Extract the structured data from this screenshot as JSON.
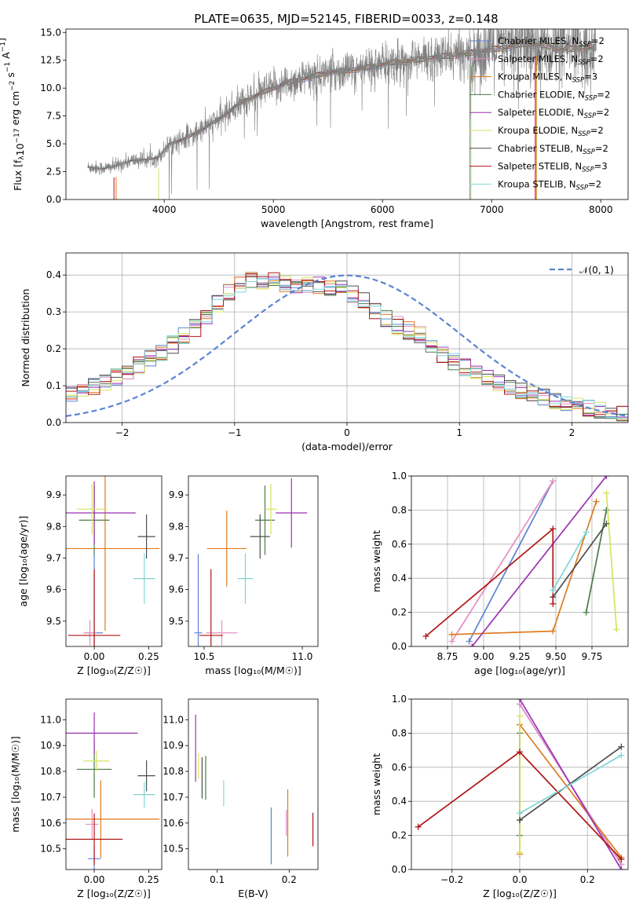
{
  "title": "PLATE=0635, MJD=52145, FIBERID=0033, z=0.148",
  "colors": {
    "Chabrier MILES": "#5b84d2",
    "Salpeter MILES": "#e58fc2",
    "Kroupa MILES": "#de7a1f",
    "Chabrier ELODIE": "#4a7a4a",
    "Salpeter ELODIE": "#9a32b2",
    "Kroupa ELODIE": "#d7e35e",
    "Chabrier STELIB": "#4d4d4d",
    "Salpeter STELIB": "#b01414",
    "Kroupa STELIB": "#7fd6d6",
    "data": "#808080"
  },
  "chart_data": [
    {
      "type": "line",
      "panel": "spectrum",
      "xlabel": "wavelength [Angstrom, rest frame]",
      "ylabel": "Flux [f",
      "xlim": [
        3100,
        8250
      ],
      "ylim": [
        0,
        15.3
      ],
      "xticks": [
        4000,
        5000,
        6000,
        7000,
        8000
      ],
      "yticks": [
        0.0,
        2.5,
        5.0,
        7.5,
        10.0,
        12.5,
        15.0
      ],
      "grid": false,
      "legend_position": "top-right",
      "legend": [
        {
          "model": "Chabrier MILES",
          "label": "Chabrier MILES, N",
          "sub": "SSP",
          "eq": "=2"
        },
        {
          "model": "Salpeter MILES",
          "label": "Salpeter MILES, N",
          "sub": "SSP",
          "eq": "=2"
        },
        {
          "model": "Kroupa MILES",
          "label": "Kroupa MILES, N",
          "sub": "SSP",
          "eq": "=3"
        },
        {
          "model": "Chabrier ELODIE",
          "label": "Chabrier ELODIE, N",
          "sub": "SSP",
          "eq": "=2"
        },
        {
          "model": "Salpeter ELODIE",
          "label": "Salpeter ELODIE, N",
          "sub": "SSP",
          "eq": "=2"
        },
        {
          "model": "Kroupa ELODIE",
          "label": "Kroupa ELODIE, N",
          "sub": "SSP",
          "eq": "=2"
        },
        {
          "model": "Chabrier STELIB",
          "label": "Chabrier STELIB, N",
          "sub": "SSP",
          "eq": "=2"
        },
        {
          "model": "Salpeter STELIB",
          "label": "Salpeter STELIB, N",
          "sub": "SSP",
          "eq": "=3"
        },
        {
          "model": "Kroupa STELIB",
          "label": "Kroupa STELIB, N",
          "sub": "SSP",
          "eq": "=2"
        }
      ],
      "continuum": [
        [
          3300,
          2.9
        ],
        [
          3450,
          2.8
        ],
        [
          3550,
          3.0
        ],
        [
          3700,
          3.5
        ],
        [
          3850,
          3.6
        ],
        [
          3950,
          3.8
        ],
        [
          4050,
          5.0
        ],
        [
          4200,
          5.5
        ],
        [
          4350,
          6.3
        ],
        [
          4500,
          7.2
        ],
        [
          4700,
          8.7
        ],
        [
          4900,
          9.6
        ],
        [
          5100,
          10.4
        ],
        [
          5300,
          10.9
        ],
        [
          5500,
          11.4
        ],
        [
          5700,
          11.6
        ],
        [
          5900,
          11.9
        ],
        [
          6100,
          12.3
        ],
        [
          6300,
          12.5
        ],
        [
          6500,
          12.8
        ],
        [
          6700,
          13.0
        ],
        [
          6900,
          13.3
        ],
        [
          7100,
          13.6
        ],
        [
          7300,
          14.0
        ],
        [
          7500,
          13.8
        ],
        [
          7650,
          13.4
        ],
        [
          7800,
          13.6
        ],
        [
          7960,
          13.6
        ]
      ]
    },
    {
      "type": "line",
      "panel": "residuals",
      "xlabel": "(data-model)/error",
      "ylabel": "Normed distribution",
      "xlim": [
        -2.5,
        2.5
      ],
      "ylim": [
        0,
        0.46
      ],
      "xticks": [
        -2,
        -1,
        0,
        1,
        2
      ],
      "yticks": [
        0.0,
        0.1,
        0.2,
        0.3,
        0.4
      ],
      "grid": true,
      "legend_position": "top-right",
      "gaussian_label": "𝒩(0, 1)",
      "bin_width": 0.1,
      "envelope": [
        [
          -2.5,
          0.07
        ],
        [
          -2.0,
          0.13
        ],
        [
          -1.6,
          0.2
        ],
        [
          -1.3,
          0.27
        ],
        [
          -1.1,
          0.34
        ],
        [
          -0.85,
          0.39
        ],
        [
          -0.6,
          0.38
        ],
        [
          -0.3,
          0.37
        ],
        [
          -0.1,
          0.37
        ],
        [
          0.1,
          0.34
        ],
        [
          0.4,
          0.27
        ],
        [
          0.7,
          0.23
        ],
        [
          0.9,
          0.17
        ],
        [
          1.2,
          0.13
        ],
        [
          1.6,
          0.08
        ],
        [
          2.0,
          0.05
        ],
        [
          2.5,
          0.02
        ]
      ]
    },
    {
      "type": "scatter",
      "panel": "age-vs-Z",
      "xlabel": "Z [log₁₀(Z/Z☉)]",
      "ylabel": "age  [log₁₀(age/yr)]",
      "xlim": [
        -0.13,
        0.31
      ],
      "ylim": [
        9.42,
        9.96
      ],
      "xticks": [
        0.0,
        0.25
      ],
      "yticks": [
        9.5,
        9.6,
        9.7,
        9.8,
        9.9
      ],
      "grid": false,
      "points": [
        {
          "model": "Chabrier MILES",
          "x": 0.0,
          "y": 9.463,
          "xerr": 0.04,
          "yerr": 0.25
        },
        {
          "model": "Salpeter MILES",
          "x": -0.02,
          "y": 9.463,
          "xerr": 0.03,
          "yerr": 0.04
        },
        {
          "model": "Kroupa MILES",
          "x": 0.05,
          "y": 9.73,
          "xerr": 0.25,
          "yerr": 0.26
        },
        {
          "model": "Chabrier ELODIE",
          "x": 0.0,
          "y": 9.82,
          "xerr": 0.07,
          "yerr": 0.11
        },
        {
          "model": "Salpeter ELODIE",
          "x": 0.0,
          "y": 9.843,
          "xerr": 0.19,
          "yerr": 0.1
        },
        {
          "model": "Kroupa ELODIE",
          "x": -0.01,
          "y": 9.855,
          "xerr": 0.07,
          "yerr": 0.08
        },
        {
          "model": "Chabrier STELIB",
          "x": 0.24,
          "y": 9.768,
          "xerr": 0.04,
          "yerr": 0.07
        },
        {
          "model": "Salpeter STELIB",
          "x": 0.0,
          "y": 9.455,
          "xerr": 0.12,
          "yerr": 0.21
        },
        {
          "model": "Kroupa STELIB",
          "x": 0.23,
          "y": 9.635,
          "xerr": 0.05,
          "yerr": 0.08
        }
      ]
    },
    {
      "type": "scatter",
      "panel": "age-vs-mass",
      "xlabel": "mass [log₁₀(M/M☉)]",
      "ylabel": "",
      "xlim": [
        10.42,
        11.08
      ],
      "ylim": [
        9.42,
        9.96
      ],
      "xticks": [
        10.5,
        11.0
      ],
      "yticks": [
        9.5,
        9.6,
        9.7,
        9.8,
        9.9
      ],
      "grid": false,
      "points": [
        {
          "model": "Chabrier MILES",
          "x": 10.47,
          "y": 9.463,
          "xerr": 0.02,
          "yerr": 0.25
        },
        {
          "model": "Salpeter MILES",
          "x": 10.59,
          "y": 9.463,
          "xerr": 0.08,
          "yerr": 0.04
        },
        {
          "model": "Kroupa MILES",
          "x": 10.615,
          "y": 9.73,
          "xerr": 0.1,
          "yerr": 0.12
        },
        {
          "model": "Chabrier ELODIE",
          "x": 10.81,
          "y": 9.82,
          "xerr": 0.05,
          "yerr": 0.11
        },
        {
          "model": "Salpeter ELODIE",
          "x": 10.945,
          "y": 9.843,
          "xerr": 0.08,
          "yerr": 0.11
        },
        {
          "model": "Kroupa ELODIE",
          "x": 10.84,
          "y": 9.855,
          "xerr": 0.03,
          "yerr": 0.08
        },
        {
          "model": "Chabrier STELIB",
          "x": 10.785,
          "y": 9.768,
          "xerr": 0.05,
          "yerr": 0.07
        },
        {
          "model": "Salpeter STELIB",
          "x": 10.535,
          "y": 9.455,
          "xerr": 0.06,
          "yerr": 0.21
        },
        {
          "model": "Kroupa STELIB",
          "x": 10.71,
          "y": 9.635,
          "xerr": 0.04,
          "yerr": 0.08
        }
      ]
    },
    {
      "type": "line",
      "panel": "mass-weight-vs-age",
      "xlabel": "age  [log₁₀(age/yr)]",
      "ylabel": "mass weight",
      "xlim": [
        8.5,
        10.0
      ],
      "ylim": [
        0,
        1.0
      ],
      "xticks": [
        8.75,
        9.0,
        9.25,
        9.5,
        9.75
      ],
      "yticks": [
        0.0,
        0.2,
        0.4,
        0.6,
        0.8,
        1.0
      ],
      "grid": true,
      "series": [
        {
          "model": "Chabrier MILES",
          "x": [
            8.9,
            9.48
          ],
          "y": [
            0.03,
            0.97
          ]
        },
        {
          "model": "Salpeter MILES",
          "x": [
            8.78,
            9.48
          ],
          "y": [
            0.03,
            0.97
          ]
        },
        {
          "model": "Kroupa MILES",
          "x": [
            8.78,
            9.48,
            9.78
          ],
          "y": [
            0.07,
            0.09,
            0.85
          ]
        },
        {
          "model": "Chabrier ELODIE",
          "x": [
            9.71,
            9.85
          ],
          "y": [
            0.2,
            0.8
          ]
        },
        {
          "model": "Salpeter ELODIE",
          "x": [
            8.92,
            9.85
          ],
          "y": [
            0.0,
            1.0
          ]
        },
        {
          "model": "Kroupa ELODIE",
          "x": [
            9.85,
            9.92
          ],
          "y": [
            0.9,
            0.1
          ]
        },
        {
          "model": "Chabrier STELIB",
          "x": [
            9.48,
            9.85
          ],
          "y": [
            0.29,
            0.72
          ]
        },
        {
          "model": "Salpeter STELIB",
          "x": [
            8.6,
            9.48,
            9.48
          ],
          "y": [
            0.06,
            0.69,
            0.25
          ]
        },
        {
          "model": "Kroupa STELIB",
          "x": [
            9.48,
            9.71
          ],
          "y": [
            0.33,
            0.67
          ]
        }
      ]
    },
    {
      "type": "scatter",
      "panel": "mass-vs-Z",
      "xlabel": "Z [log₁₀(Z/Z☉)]",
      "ylabel": "mass [log₁₀(M/M☉)]",
      "xlim": [
        -0.13,
        0.31
      ],
      "ylim": [
        10.42,
        11.08
      ],
      "xticks": [
        0.0,
        0.25
      ],
      "yticks": [
        10.5,
        10.6,
        10.7,
        10.8,
        10.9,
        11.0
      ],
      "grid": false,
      "points": [
        {
          "model": "Chabrier MILES",
          "x": 0.0,
          "y": 10.462,
          "xerr": 0.03,
          "yerr": 0.05
        },
        {
          "model": "Salpeter MILES",
          "x": -0.01,
          "y": 10.595,
          "xerr": 0.03,
          "yerr": 0.06
        },
        {
          "model": "Kroupa MILES",
          "x": 0.03,
          "y": 10.615,
          "xerr": 0.27,
          "yerr": 0.15
        },
        {
          "model": "Chabrier ELODIE",
          "x": 0.0,
          "y": 10.808,
          "xerr": 0.08,
          "yerr": 0.11
        },
        {
          "model": "Salpeter ELODIE",
          "x": 0.0,
          "y": 10.948,
          "xerr": 0.2,
          "yerr": 0.08
        },
        {
          "model": "Kroupa ELODIE",
          "x": 0.01,
          "y": 10.84,
          "xerr": 0.06,
          "yerr": 0.04
        },
        {
          "model": "Chabrier STELIB",
          "x": 0.24,
          "y": 10.783,
          "xerr": 0.04,
          "yerr": 0.06
        },
        {
          "model": "Salpeter STELIB",
          "x": 0.0,
          "y": 10.537,
          "xerr": 0.13,
          "yerr": 0.1
        },
        {
          "model": "Kroupa STELIB",
          "x": 0.23,
          "y": 10.71,
          "xerr": 0.05,
          "yerr": 0.05
        }
      ]
    },
    {
      "type": "scatter",
      "panel": "mass-vs-EBV",
      "xlabel": "E(B-V)",
      "ylabel": "",
      "xlim": [
        0.06,
        0.24
      ],
      "ylim": [
        10.42,
        11.08
      ],
      "xticks": [
        0.1,
        0.2
      ],
      "yticks": [
        10.5,
        10.6,
        10.7,
        10.8,
        10.9,
        11.0
      ],
      "grid": false,
      "points": [
        {
          "model": "Chabrier MILES",
          "x": 0.175,
          "y": 10.55,
          "xerr": 0,
          "yerr": 0.11
        },
        {
          "model": "Salpeter MILES",
          "x": 0.196,
          "y": 10.6,
          "xerr": 0,
          "yerr": 0.05
        },
        {
          "model": "Kroupa MILES",
          "x": 0.198,
          "y": 10.6,
          "xerr": 0,
          "yerr": 0.13
        },
        {
          "model": "Chabrier ELODIE",
          "x": 0.084,
          "y": 10.775,
          "xerr": 0,
          "yerr": 0.085
        },
        {
          "model": "Salpeter ELODIE",
          "x": 0.07,
          "y": 10.89,
          "xerr": 0,
          "yerr": 0.13
        },
        {
          "model": "Kroupa ELODIE",
          "x": 0.074,
          "y": 10.82,
          "xerr": 0,
          "yerr": 0.05
        },
        {
          "model": "Chabrier STELIB",
          "x": 0.079,
          "y": 10.775,
          "xerr": 0,
          "yerr": 0.08
        },
        {
          "model": "Salpeter STELIB",
          "x": 0.233,
          "y": 10.575,
          "xerr": 0,
          "yerr": 0.065
        },
        {
          "model": "Kroupa STELIB",
          "x": 0.109,
          "y": 10.715,
          "xerr": 0,
          "yerr": 0.05
        }
      ]
    },
    {
      "type": "line",
      "panel": "mass-weight-vs-Z",
      "xlabel": "Z [log₁₀(Z/Z☉)]",
      "ylabel": "mass weight",
      "xlim": [
        -0.32,
        0.32
      ],
      "ylim": [
        0,
        1.0
      ],
      "xticks": [
        -0.2,
        0.0,
        0.2
      ],
      "yticks": [
        0.0,
        0.2,
        0.4,
        0.6,
        0.8,
        1.0
      ],
      "grid": true,
      "series": [
        {
          "model": "Chabrier MILES",
          "x": [
            0.0,
            0.3
          ],
          "y": [
            0.97,
            0.03
          ]
        },
        {
          "model": "Salpeter MILES",
          "x": [
            0.0,
            0.3
          ],
          "y": [
            0.97,
            0.03
          ]
        },
        {
          "model": "Kroupa MILES",
          "x": [
            0.0,
            0.0,
            0.3
          ],
          "y": [
            0.09,
            0.85,
            0.07
          ]
        },
        {
          "model": "Chabrier ELODIE",
          "x": [
            0.0,
            0.0
          ],
          "y": [
            0.2,
            0.8
          ]
        },
        {
          "model": "Salpeter ELODIE",
          "x": [
            0.0,
            0.3
          ],
          "y": [
            1.0,
            0.0
          ]
        },
        {
          "model": "Kroupa ELODIE",
          "x": [
            0.0,
            0.0
          ],
          "y": [
            0.9,
            0.1
          ]
        },
        {
          "model": "Chabrier STELIB",
          "x": [
            0.0,
            0.3
          ],
          "y": [
            0.29,
            0.72
          ]
        },
        {
          "model": "Salpeter STELIB",
          "x": [
            -0.3,
            0.0,
            0.3
          ],
          "y": [
            0.25,
            0.69,
            0.06
          ]
        },
        {
          "model": "Kroupa STELIB",
          "x": [
            0.0,
            0.3
          ],
          "y": [
            0.33,
            0.67
          ]
        }
      ]
    }
  ]
}
